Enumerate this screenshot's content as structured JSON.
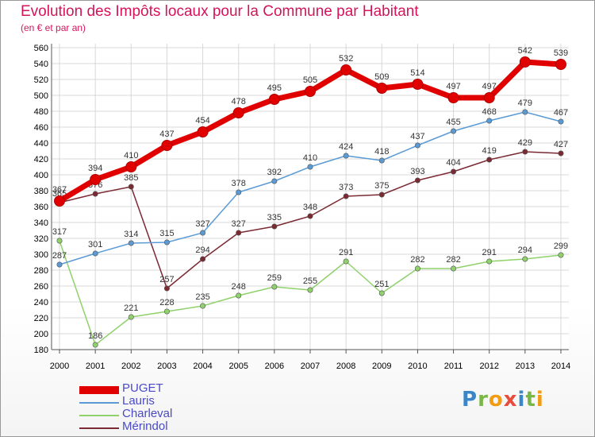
{
  "header": {
    "title": "Evolution des Impôts locaux pour la Commune par Habitant",
    "subtitle": "(en € et par an)"
  },
  "logo": {
    "text": "Proxiti",
    "letters": [
      "P",
      "r",
      "o",
      "x",
      "i",
      "t",
      "i"
    ],
    "colors": [
      "#3a86c8",
      "#7ab648",
      "#f39c12",
      "#e74c3c",
      "#3a86c8",
      "#7ab648",
      "#f39c12"
    ]
  },
  "chart_data": {
    "type": "line",
    "title": "Evolution des Impôts locaux pour la Commune par Habitant",
    "subtitle": "(en € et par an)",
    "x": [
      "2000",
      "2001",
      "2002",
      "2003",
      "2004",
      "2005",
      "2006",
      "2007",
      "2008",
      "2009",
      "2010",
      "2011",
      "2012",
      "2013",
      "2014"
    ],
    "ylim": [
      180,
      560
    ],
    "yticks": [
      180,
      200,
      220,
      240,
      260,
      280,
      300,
      320,
      340,
      360,
      380,
      400,
      420,
      440,
      460,
      480,
      500,
      520,
      540,
      560
    ],
    "grid": true,
    "legend_position": "bottom-left",
    "series": [
      {
        "name": "PUGET",
        "color": "#e00000",
        "values": [
          367,
          394,
          410,
          437,
          454,
          478,
          495,
          505,
          532,
          509,
          514,
          497,
          497,
          542,
          539
        ]
      },
      {
        "name": "Lauris",
        "color": "#5b9bd5",
        "values": [
          287,
          301,
          314,
          315,
          327,
          378,
          392,
          410,
          424,
          418,
          437,
          455,
          468,
          479,
          467
        ]
      },
      {
        "name": "Charleval",
        "color": "#8fd16b",
        "values": [
          317,
          186,
          221,
          228,
          235,
          248,
          259,
          255,
          291,
          251,
          282,
          282,
          291,
          294,
          299
        ]
      },
      {
        "name": "Mérindol",
        "color": "#7b2a33",
        "values": [
          365,
          376,
          385,
          257,
          294,
          327,
          335,
          348,
          373,
          375,
          393,
          404,
          419,
          429,
          427
        ]
      }
    ]
  }
}
